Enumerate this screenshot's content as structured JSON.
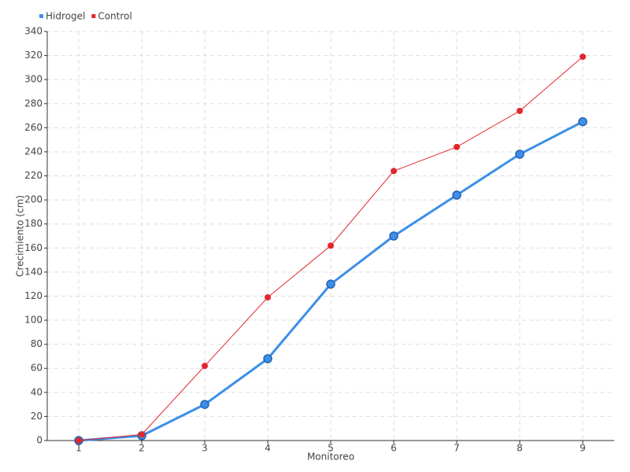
{
  "chart_data": {
    "type": "line",
    "x": [
      1,
      2,
      3,
      4,
      5,
      6,
      7,
      8,
      9
    ],
    "xlim": [
      0.5,
      9.5
    ],
    "xticks": [
      1,
      2,
      3,
      4,
      5,
      6,
      7,
      8,
      9
    ],
    "ylim": [
      0,
      340
    ],
    "yticks": [
      0,
      20,
      40,
      60,
      80,
      100,
      120,
      140,
      160,
      180,
      200,
      220,
      240,
      260,
      280,
      300,
      320,
      340
    ],
    "xlabel": "Monitoreo",
    "ylabel": "Crecimiento (cm)",
    "grid": true,
    "legend": "top-left",
    "series": [
      {
        "name": "Hidrogel",
        "color": "#3d8fe8",
        "values": [
          0,
          4,
          30,
          68,
          130,
          170,
          204,
          238,
          265
        ]
      },
      {
        "name": "Control",
        "color": "#e3262d",
        "values": [
          0,
          5,
          62,
          119,
          162,
          224,
          244,
          274,
          319
        ]
      }
    ]
  }
}
